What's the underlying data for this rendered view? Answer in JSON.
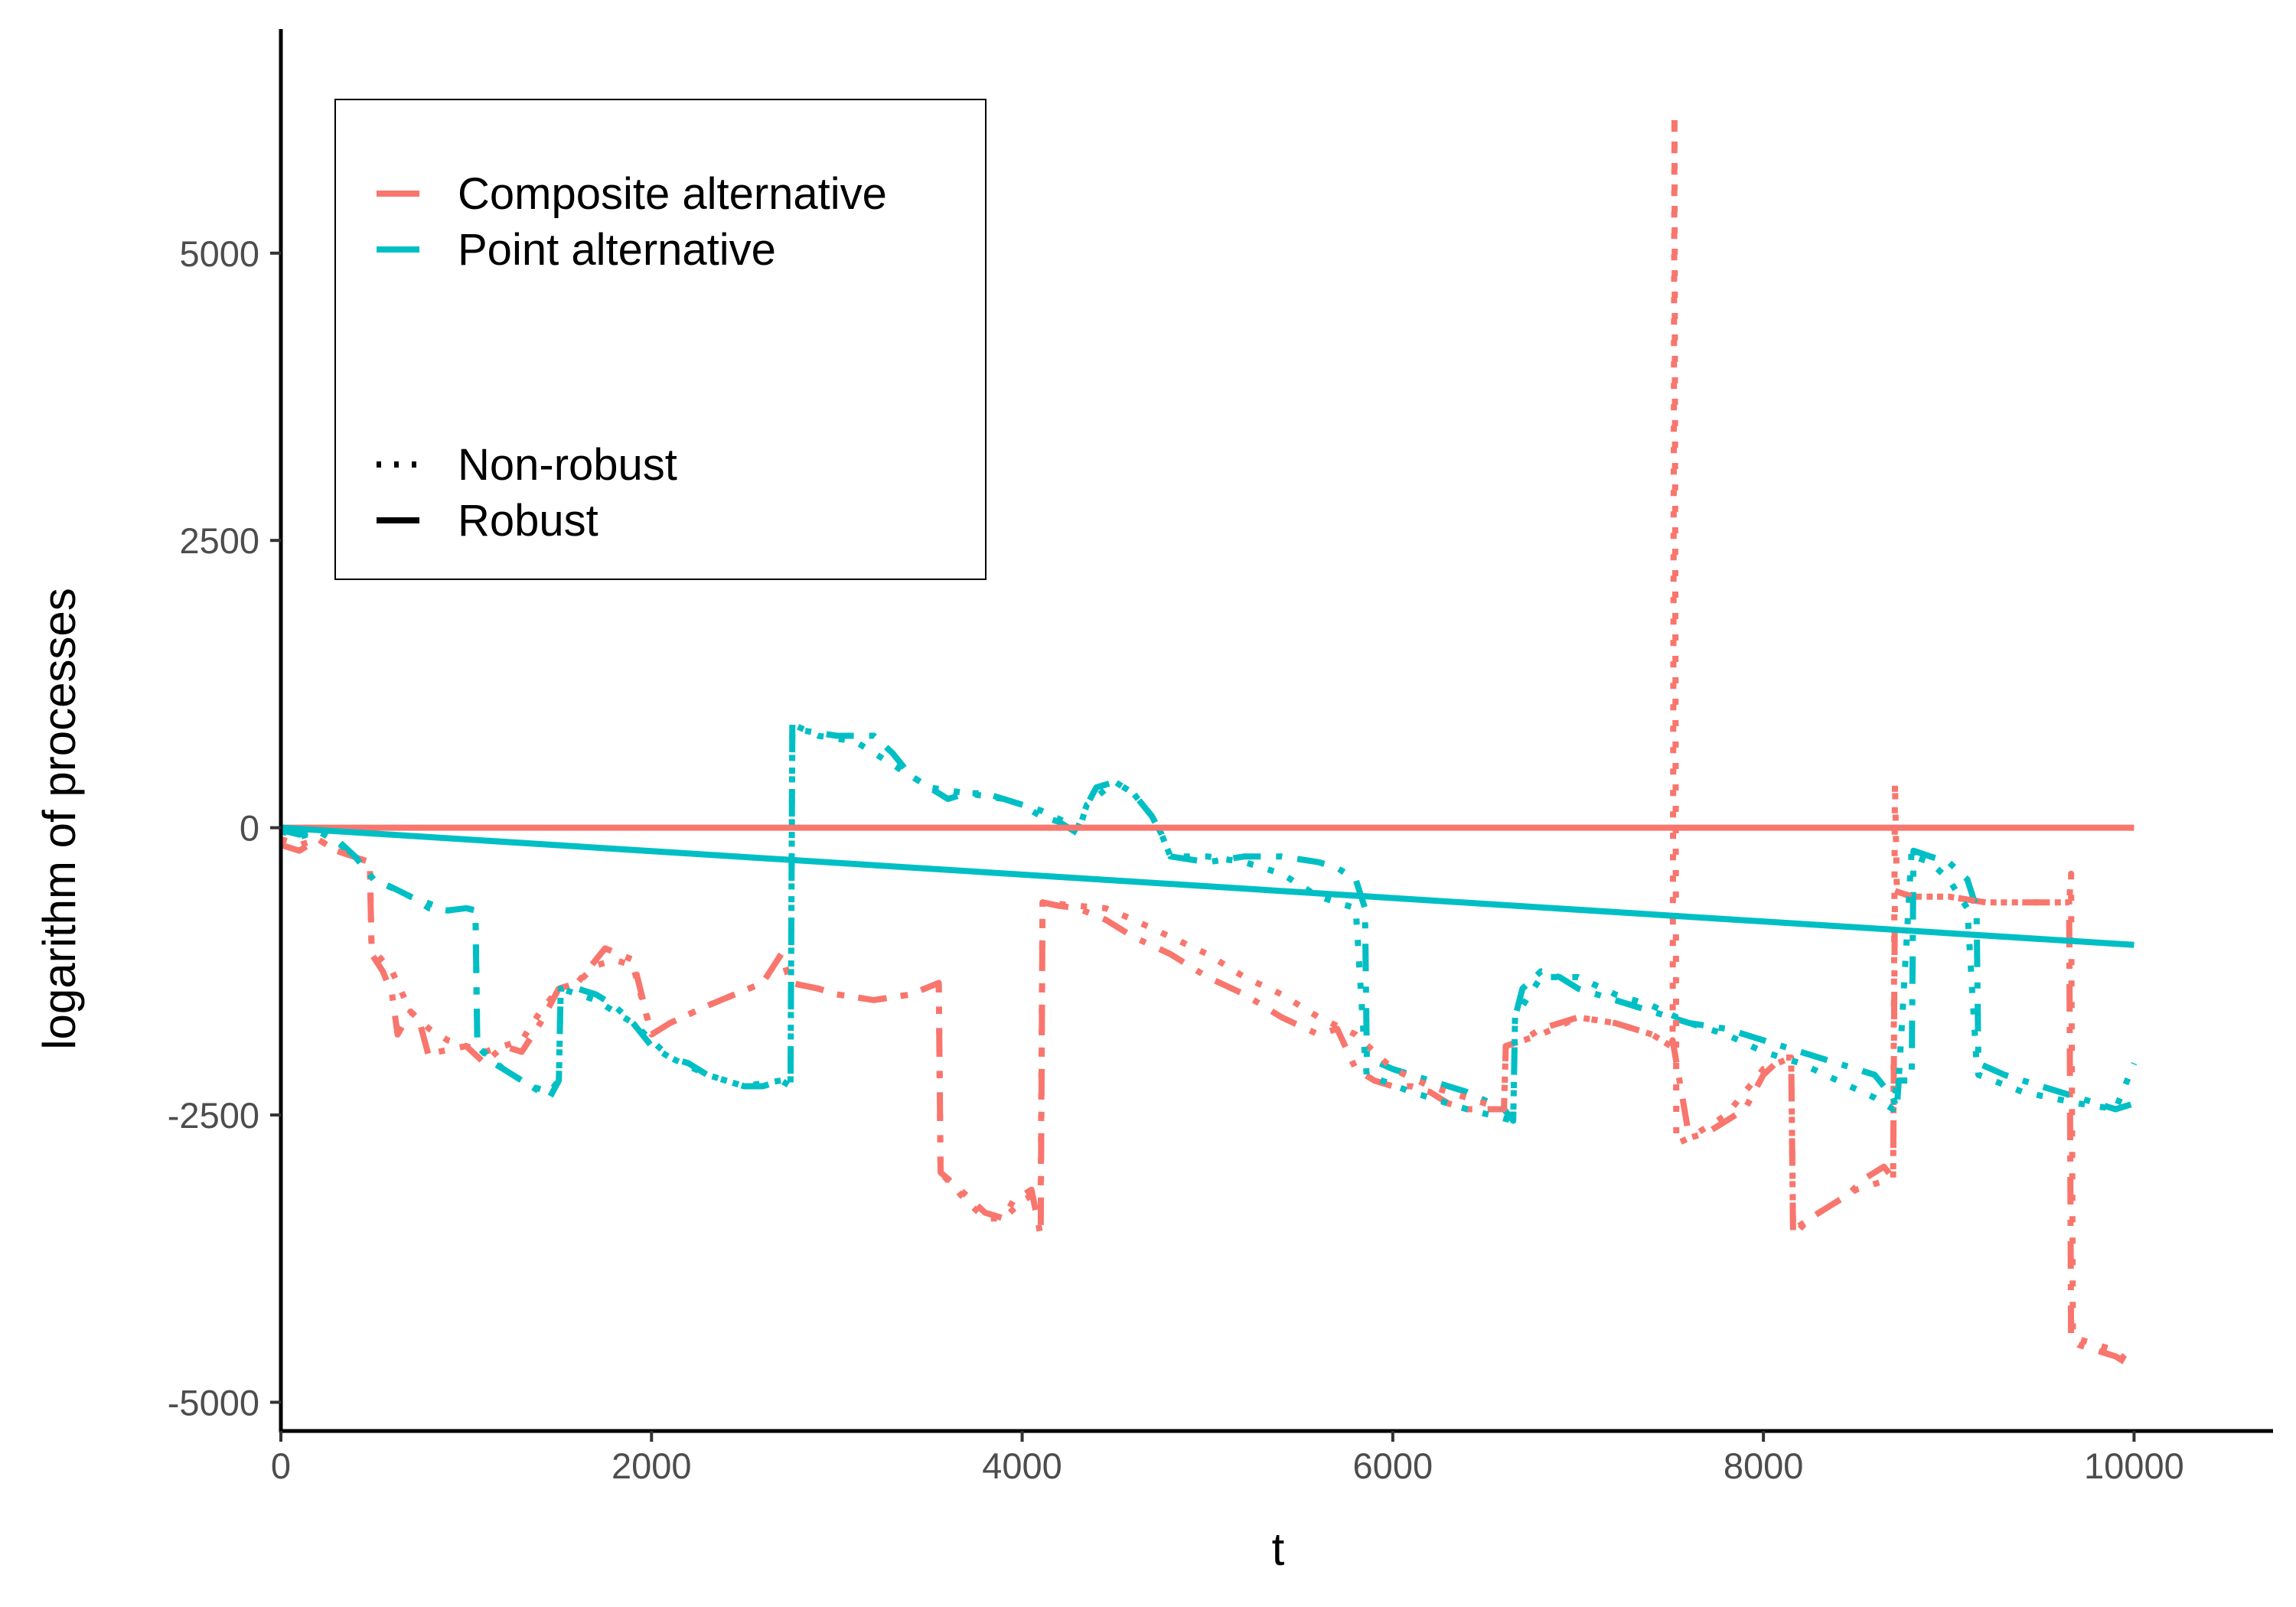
{
  "chart_data": {
    "type": "line",
    "title": "",
    "xlabel": "t",
    "ylabel": "logarithm of processes",
    "xlim": [
      0,
      10750
    ],
    "ylim": [
      -5250,
      6950
    ],
    "x_ticks": [
      0,
      2000,
      4000,
      6000,
      8000,
      10000
    ],
    "x_tick_labels": [
      "0",
      "2000",
      "4000",
      "6000",
      "8000",
      "10000"
    ],
    "y_ticks": [
      -5000,
      -2500,
      0,
      2500,
      5000
    ],
    "y_tick_labels": [
      "-5000",
      "-2500",
      "0",
      "2500",
      "5000"
    ],
    "grid": false,
    "legend_position": "top-left",
    "legend": {
      "color_items": [
        {
          "label": "Composite alternative",
          "color": "#F8766D"
        },
        {
          "label": "Point alternative",
          "color": "#00BFC4"
        }
      ],
      "linetype_items": [
        {
          "label": "Non-robust",
          "style": "dotted"
        },
        {
          "label": "Robust",
          "style": "solid"
        }
      ]
    },
    "series": [
      {
        "color_group": "Composite alternative",
        "linetype": "solid",
        "color": "#F8766D",
        "x": [
          0,
          10000
        ],
        "y": [
          0,
          0
        ]
      },
      {
        "color_group": "Point alternative",
        "linetype": "solid",
        "color": "#00BFC4",
        "x": [
          0,
          10000
        ],
        "y": [
          0,
          -1020
        ]
      },
      {
        "color_group": "Composite alternative",
        "linetype": "dashed",
        "color": "#F8766D",
        "x": [
          0,
          100,
          200,
          300,
          480,
          490,
          550,
          600,
          630,
          700,
          750,
          800,
          850,
          1000,
          1100,
          1200,
          1300,
          1400,
          1500,
          1600,
          1700,
          1750,
          1900,
          2000,
          2100,
          2300,
          2450,
          2600,
          2700,
          2750,
          2900,
          3000,
          3200,
          3400,
          3550,
          3560,
          3700,
          3800,
          3900,
          3950,
          4050,
          4100,
          4110,
          4200,
          4300,
          4450,
          4600,
          4800,
          5000,
          5200,
          5400,
          5600,
          5700,
          5800,
          5900,
          6000,
          6100,
          6200,
          6300,
          6400,
          6500,
          6600,
          6610,
          6700,
          6800,
          6900,
          7000,
          7200,
          7400,
          7500,
          7510,
          7600,
          7700,
          7800,
          7900,
          8000,
          8100,
          8150,
          8160,
          8250,
          8350,
          8450,
          8550,
          8650,
          8700,
          8710,
          8800,
          9000,
          9200,
          9400,
          9600,
          9650,
          9660,
          9700,
          9800,
          9900,
          10000
        ],
        "y": [
          -150,
          -200,
          -100,
          -200,
          -300,
          -1100,
          -1250,
          -1450,
          -1800,
          -1600,
          -1700,
          -2000,
          -1950,
          -1900,
          -2050,
          -1900,
          -1950,
          -1700,
          -1400,
          -1350,
          -1150,
          -1050,
          -1150,
          -1800,
          -1700,
          -1550,
          -1450,
          -1350,
          -1100,
          -1350,
          -1400,
          -1450,
          -1500,
          -1450,
          -1350,
          -3000,
          -3200,
          -3350,
          -3400,
          -3250,
          -3150,
          -3550,
          -650,
          -680,
          -700,
          -800,
          -950,
          -1100,
          -1300,
          -1450,
          -1650,
          -1800,
          -1750,
          -2100,
          -2200,
          -2250,
          -2250,
          -2300,
          -2400,
          -2450,
          -2450,
          -2450,
          -1900,
          -1850,
          -1750,
          -1700,
          -1650,
          -1700,
          -1800,
          -1900,
          -1850,
          -2700,
          -2650,
          -2550,
          -2450,
          -2150,
          -2000,
          -2000,
          -3550,
          -3400,
          -3300,
          -3200,
          -3050,
          -2950,
          -3050,
          -550,
          -600,
          -600,
          -650,
          -650,
          -650,
          -650,
          -4450,
          -4500,
          -4550,
          -4600,
          -4700
        ]
      },
      {
        "color_group": "Point alternative",
        "linetype": "dashed",
        "color": "#00BFC4",
        "x": [
          0,
          100,
          200,
          300,
          400,
          500,
          600,
          700,
          800,
          900,
          1000,
          1050,
          1060,
          1150,
          1250,
          1350,
          1450,
          1500,
          1510,
          1600,
          1700,
          1800,
          1900,
          2000,
          2100,
          2200,
          2300,
          2400,
          2500,
          2600,
          2700,
          2750,
          2760,
          2800,
          3000,
          3200,
          3300,
          3400,
          3500,
          3600,
          3700,
          3800,
          3900,
          4000,
          4100,
          4200,
          4300,
          4350,
          4400,
          4500,
          4600,
          4700,
          4750,
          4800,
          5000,
          5200,
          5400,
          5600,
          5700,
          5800,
          5850,
          5860,
          6000,
          6200,
          6400,
          6600,
          6650,
          6660,
          6700,
          6800,
          6900,
          7000,
          7200,
          7400,
          7600,
          7800,
          8000,
          8200,
          8400,
          8600,
          8700,
          8720,
          8730,
          8800,
          8810,
          8900,
          9000,
          9100,
          9150,
          9160,
          9300,
          9500,
          9700,
          9900,
          10000
        ],
        "y": [
          -20,
          -60,
          -20,
          -100,
          -250,
          -450,
          -520,
          -600,
          -700,
          -720,
          -700,
          -720,
          -1900,
          -2050,
          -2150,
          -2250,
          -2350,
          -2200,
          -1400,
          -1400,
          -1450,
          -1550,
          -1700,
          -1900,
          -2000,
          -2050,
          -2150,
          -2200,
          -2250,
          -2250,
          -2200,
          -2250,
          900,
          850,
          800,
          800,
          650,
          450,
          350,
          250,
          300,
          300,
          250,
          200,
          100,
          50,
          -50,
          200,
          350,
          400,
          300,
          100,
          -50,
          -250,
          -300,
          -250,
          -250,
          -300,
          -350,
          -450,
          -700,
          -2000,
          -2100,
          -2200,
          -2300,
          -2450,
          -2550,
          -1650,
          -1400,
          -1250,
          -1300,
          -1400,
          -1500,
          -1600,
          -1700,
          -1750,
          -1850,
          -1950,
          -2050,
          -2150,
          -2350,
          -2450,
          -2200,
          -2200,
          -200,
          -250,
          -300,
          -450,
          -700,
          -2050,
          -2150,
          -2250,
          -2350,
          -2450,
          -2400
        ]
      },
      {
        "color_group": "Composite alternative",
        "linetype": "dotted",
        "color": "#F8766D",
        "x": [
          0,
          100,
          200,
          300,
          480,
          490,
          600,
          700,
          800,
          900,
          1000,
          1100,
          1200,
          1300,
          1400,
          1500,
          1600,
          1700,
          1800,
          1900,
          2000,
          2100,
          2300,
          2450,
          2600,
          2700,
          2750,
          2900,
          3000,
          3200,
          3400,
          3550,
          3560,
          3700,
          3800,
          3900,
          4000,
          4100,
          4110,
          4300,
          4450,
          4600,
          4800,
          5000,
          5200,
          5400,
          5600,
          5800,
          6000,
          6200,
          6400,
          6600,
          6610,
          6800,
          7000,
          7200,
          7400,
          7500,
          7510,
          7520,
          7530,
          7600,
          7800,
          8000,
          8150,
          8160,
          8300,
          8500,
          8700,
          8710,
          8720,
          8800,
          9000,
          9200,
          9400,
          9600,
          9650,
          9660,
          9670,
          9680,
          9700,
          9800,
          9900,
          10000
        ],
        "y": [
          -100,
          -150,
          -100,
          -200,
          -300,
          -1050,
          -1250,
          -1600,
          -1750,
          -1850,
          -1900,
          -1950,
          -1900,
          -1850,
          -1600,
          -1400,
          -1350,
          -1200,
          -1150,
          -1200,
          -1800,
          -1700,
          -1550,
          -1450,
          -1350,
          -1100,
          -1350,
          -1400,
          -1450,
          -1500,
          -1450,
          -1350,
          -3000,
          -3250,
          -3400,
          -3400,
          -3250,
          -3150,
          -650,
          -680,
          -700,
          -800,
          -950,
          -1100,
          -1300,
          -1450,
          -1650,
          -1800,
          -2100,
          -2250,
          -2350,
          -2450,
          -1900,
          -1800,
          -1650,
          -1700,
          -1800,
          -1900,
          -1850,
          6200,
          -2750,
          -2700,
          -2500,
          -2100,
          -2000,
          -3500,
          -3350,
          -3150,
          -3050,
          400,
          -550,
          -600,
          -600,
          -650,
          -650,
          -650,
          -650,
          -400,
          -4400,
          -4400,
          -4450,
          -4500,
          -4550,
          -4700
        ]
      },
      {
        "color_group": "Point alternative",
        "linetype": "dotted",
        "color": "#00BFC4",
        "x": [
          0,
          100,
          200,
          300,
          400,
          500,
          700,
          900,
          1000,
          1050,
          1060,
          1200,
          1350,
          1450,
          1500,
          1510,
          1700,
          1900,
          2100,
          2300,
          2500,
          2700,
          2750,
          2760,
          2900,
          3100,
          3300,
          3500,
          3700,
          3900,
          4100,
          4300,
          4350,
          4500,
          4600,
          4700,
          4750,
          4800,
          5000,
          5200,
          5400,
          5600,
          5800,
          5850,
          5860,
          6100,
          6400,
          6650,
          6660,
          6800,
          7000,
          7200,
          7400,
          7600,
          7800,
          8000,
          8200,
          8400,
          8600,
          8700,
          8720,
          8730,
          8800,
          8810,
          8900,
          9000,
          9100,
          9150,
          9160,
          9400,
          9700,
          9900,
          10000
        ],
        "y": [
          -30,
          -80,
          -30,
          -120,
          -250,
          -450,
          -600,
          -720,
          -700,
          -720,
          -1900,
          -2100,
          -2250,
          -2300,
          -2200,
          -1400,
          -1500,
          -1700,
          -2000,
          -2150,
          -2250,
          -2200,
          -2250,
          900,
          800,
          750,
          550,
          350,
          300,
          250,
          150,
          0,
          200,
          400,
          300,
          100,
          -50,
          -250,
          -250,
          -300,
          -400,
          -600,
          -700,
          -2000,
          -2150,
          -2300,
          -2450,
          -2550,
          -1650,
          -1300,
          -1300,
          -1450,
          -1550,
          -1700,
          -1800,
          -1950,
          -2050,
          -2200,
          -2350,
          -2450,
          -2200,
          -2200,
          -200,
          -250,
          -300,
          -450,
          -700,
          -2050,
          -2150,
          -2300,
          -2400,
          -2450,
          -2050
        ]
      }
    ]
  }
}
